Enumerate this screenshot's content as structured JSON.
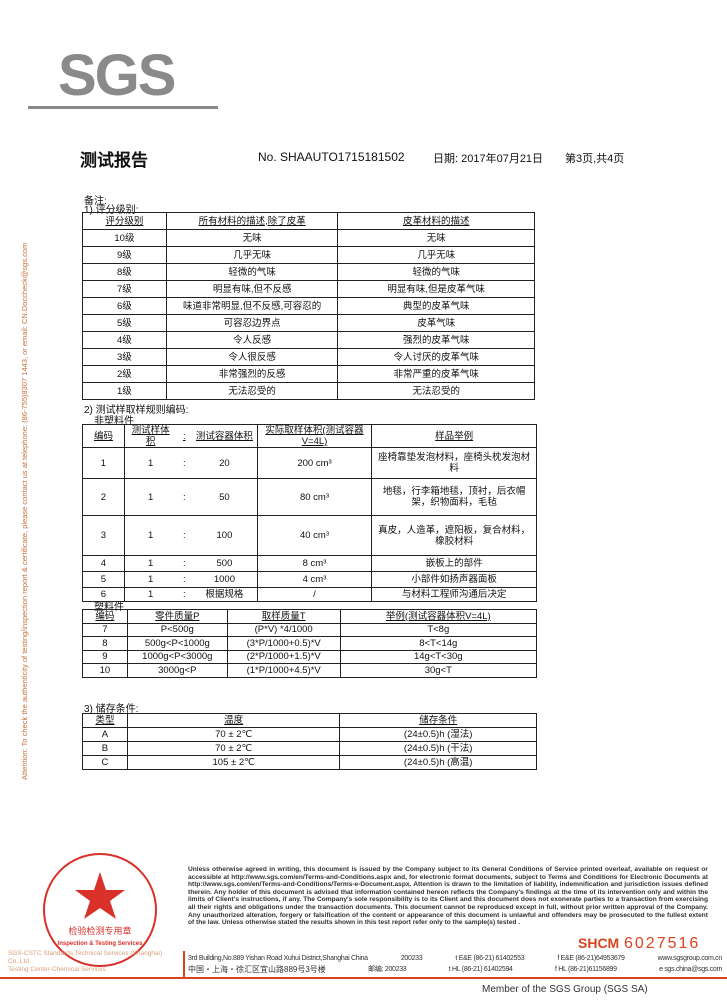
{
  "logo": "SGS",
  "side_notice": "Attention: To check the authenticity of testing/inspection report & certificate, please contact us at telephone: (86-755)8307 1443, or email: CN.Doccheck@sgs.com",
  "header": {
    "title": "测试报告",
    "report_no": "No. SHAAUTO1715181502",
    "date": "日期: 2017年07月21日",
    "page": "第3页,共4页"
  },
  "remarks_label": "备注:",
  "section1": {
    "label": "1) 评分级别:",
    "headers": [
      "评分级别",
      "所有材料的描述,除了皮革",
      "皮革材料的描述"
    ],
    "rows": [
      [
        "10级",
        "无味",
        "无味"
      ],
      [
        "9级",
        "几乎无味",
        "几乎无味"
      ],
      [
        "8级",
        "轻微的气味",
        "轻微的气味"
      ],
      [
        "7级",
        "明显有味,但不反感",
        "明显有味,但是皮革气味"
      ],
      [
        "6级",
        "味道非常明显,但不反感,可容忍的",
        "典型的皮革气味"
      ],
      [
        "5级",
        "可容忍边界点",
        "皮革气味"
      ],
      [
        "4级",
        "令人反感",
        "强烈的皮革气味"
      ],
      [
        "3级",
        "令人很反感",
        "令人讨厌的皮革气味"
      ],
      [
        "2级",
        "非常强烈的反感",
        "非常严重的皮革气味"
      ],
      [
        "1级",
        "无法忍受的",
        "无法忍受的"
      ]
    ]
  },
  "section2": {
    "label": "2) 测试样取样规则编码:",
    "sub_nonplastic": "非塑料件",
    "headers": [
      "编码",
      "测试样体积",
      ":",
      "测试容器体积",
      "实际取样体积(测试容器V=4L)",
      "样品举例"
    ],
    "rows": [
      [
        "1",
        "1",
        ":",
        "20",
        "200 cm³",
        "座椅靠垫发泡材料，座椅头枕发泡材料"
      ],
      [
        "2",
        "1",
        ":",
        "50",
        "80 cm³",
        "地毯，行李箱地毯，顶衬，后衣帽架，织物面料，毛毡"
      ],
      [
        "3",
        "1",
        ":",
        "100",
        "40 cm³",
        "真皮，人造革，遮阳板，复合材料，橡胶材料"
      ],
      [
        "4",
        "1",
        ":",
        "500",
        "8 cm³",
        "嵌板上的部件"
      ],
      [
        "5",
        "1",
        ":",
        "1000",
        "4 cm³",
        "小部件如扬声器面板"
      ],
      [
        "6",
        "1",
        ":",
        "根据规格",
        "/",
        "与材料工程师沟通后决定"
      ]
    ],
    "sub_plastic": "塑料件",
    "plastic_headers": [
      "编码",
      "零件质量P",
      "取样质量T",
      "举例(测试容器体积V=4L)"
    ],
    "plastic_rows": [
      [
        "7",
        "P<500g",
        "(P*V) *4/1000",
        "T<8g"
      ],
      [
        "8",
        "500g<P<1000g",
        "(3*P/1000+0.5)*V",
        "8<T<14g"
      ],
      [
        "9",
        "1000g<P<3000g",
        "(2*P/1000+1.5)*V",
        "14g<T<30g"
      ],
      [
        "10",
        "3000g<P",
        "(1*P/1000+4.5)*V",
        "30g<T"
      ]
    ]
  },
  "section3": {
    "label": "3) 储存条件:",
    "headers": [
      "类型",
      "温度",
      "储存条件"
    ],
    "rows": [
      [
        "A",
        "70  ±  2℃",
        "(24±0.5)h (湿法)"
      ],
      [
        "B",
        "70  ±  2℃",
        "(24±0.5)h (干法)"
      ],
      [
        "C",
        "105  ±  2℃",
        "(24±0.5)h (高温)"
      ]
    ]
  },
  "footer": {
    "legal": "Unless otherwise agreed in writing, this document is issued by the Company subject to its General Conditions of Service printed overleaf, available on request or accessible at http://www.sgs.com/en/Terms-and-Conditions.aspx and, for electronic format documents, subject to Terms and Conditions for Electronic Documents at http://www.sgs.com/en/Terms-and-Conditions/Terms-e-Document.aspx. Attention is drawn to the limitation of liability, indemnification and jurisdiction issues defined therein. Any holder of this document is advised that information contained hereon reflects the Company's findings at the time of its intervention only and within the limits of Client's instructions, if any. The Company's sole responsibility is to its Client and this document does not exonerate parties to a transaction from exercising all their rights and obligations under the transaction documents. This document cannot be reproduced except in full, without prior written approval of the Company. Any unauthorized alteration, forgery or falsification of the content or appearance of this document is unlawful and offenders may be prosecuted to the fullest extent of the law. Unless otherwise stated the results shown in this test report refer only to the sample(s) tested .",
    "shcm": "SHCM",
    "serial": "6027516",
    "addr_en": "3rd Building,No.889 Yishan Road Xuhui District,Shanghai China",
    "zip_en": "200233",
    "addr_cn": "中国・上海・徐汇区宜山路889号3号楼",
    "zip_cn": "邮编: 200233",
    "tel1": "t E&E (86-21) 61402553",
    "fax1": "f E&E (86-21)64953679",
    "web": "www.sgsgroup.com.cn",
    "tel2": "t HL (86-21) 61402594",
    "fax2": "f HL (86-21)61156899",
    "email": "e  sgs.china@sgs.com",
    "member": "Member of the SGS Group (SGS SA)",
    "stamp_text": "通标标准技术服务(上海)有限公司 检验检测专用章 Inspection & Testing Services",
    "company_line1": "SGS-CSTC Standards Technical Services (Shanghai) Co.,Ltd.",
    "company_line2": "Testing Center-Chemical Services"
  },
  "colors": {
    "logo": "#8a8a8a",
    "accent_red": "#d9431e",
    "side_notice": "#c8703a"
  }
}
